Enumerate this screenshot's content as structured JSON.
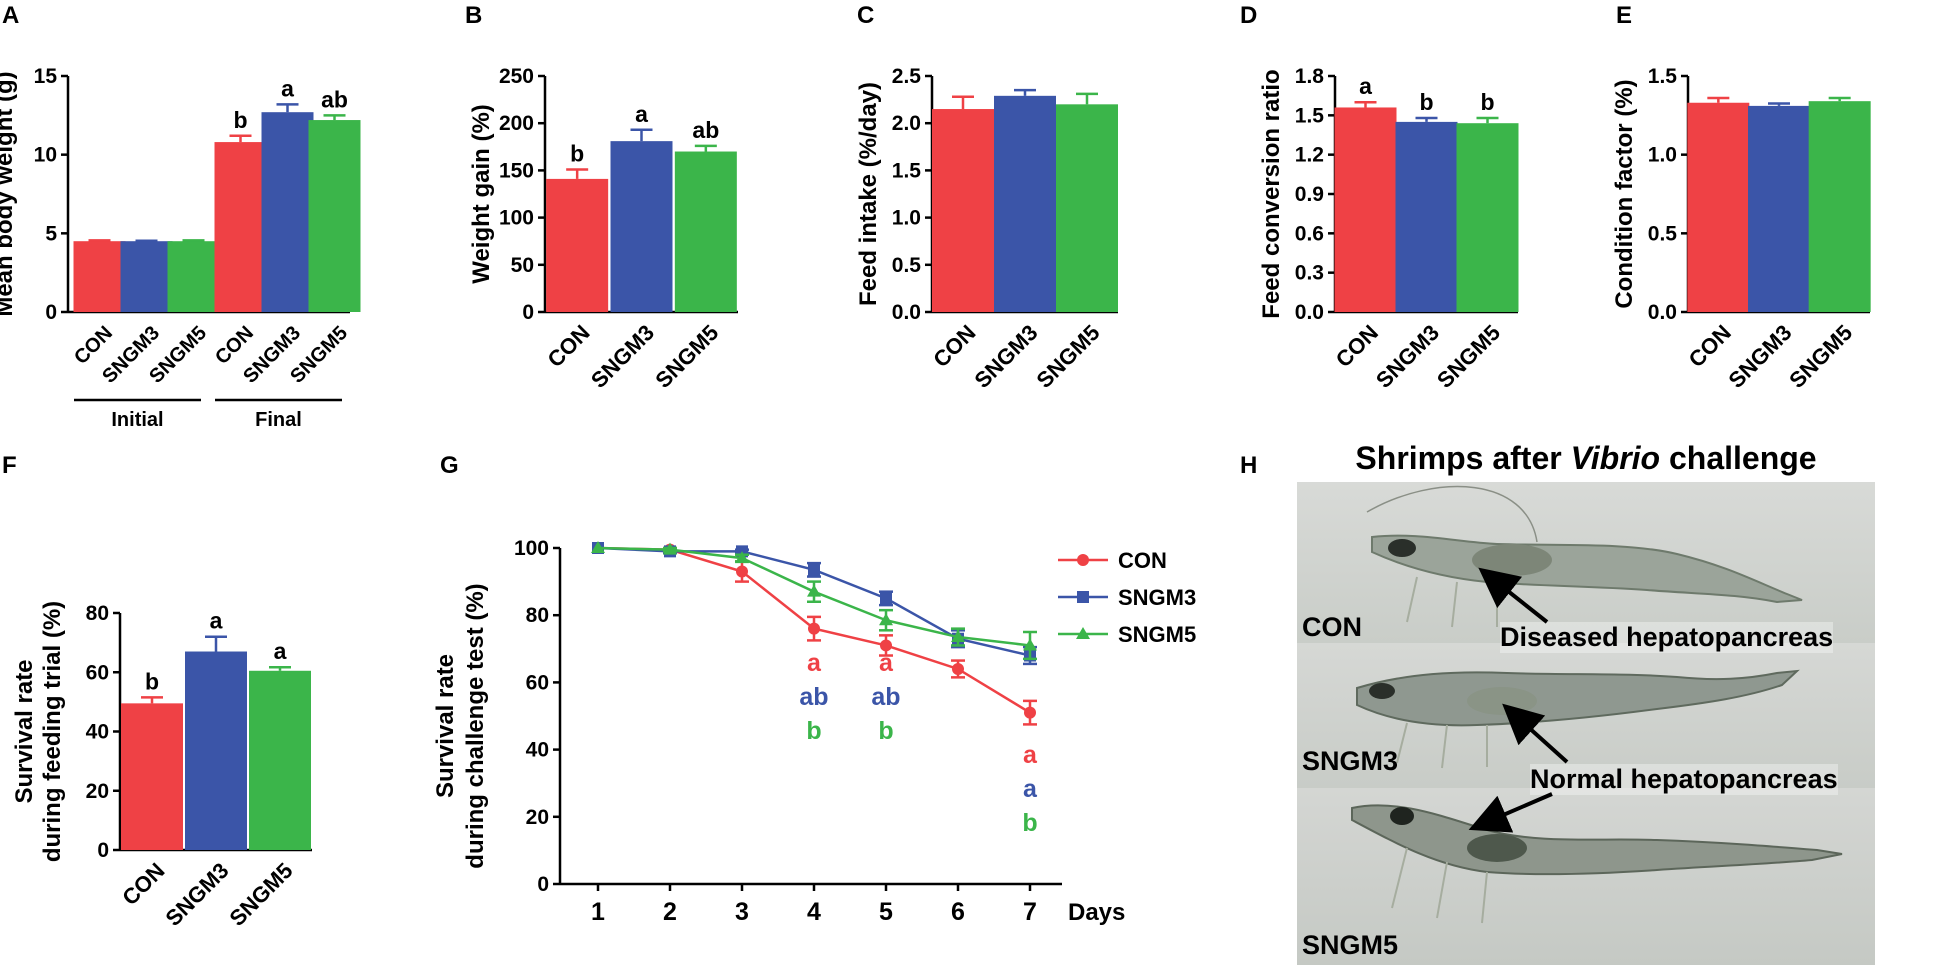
{
  "colors": {
    "con": "#ef4145",
    "sngm3": "#3b55a8",
    "sngm5": "#3bb54a",
    "axis": "#000000"
  },
  "chart_data": [
    {
      "panel": "A",
      "type": "bar",
      "ylabel": "Mean body weight (g)",
      "ylim": [
        0,
        15
      ],
      "yticks": [
        "0",
        "5",
        "10",
        "15"
      ],
      "categories": [
        "CON",
        "SNGM3",
        "SNGM5",
        "CON",
        "SNGM3",
        "SNGM5"
      ],
      "values": [
        4.5,
        4.5,
        4.5,
        10.8,
        12.7,
        12.2
      ],
      "errors": [
        0.05,
        0.03,
        0.05,
        0.4,
        0.5,
        0.3
      ],
      "letters": [
        "",
        "",
        "",
        "b",
        "a",
        "ab"
      ],
      "groups": [
        {
          "label": "Initial",
          "start": 0,
          "end": 2
        },
        {
          "label": "Final",
          "start": 3,
          "end": 5
        }
      ]
    },
    {
      "panel": "B",
      "type": "bar",
      "ylabel": "Weight gain (%)",
      "ylim": [
        0,
        250
      ],
      "yticks": [
        "0",
        "50",
        "100",
        "150",
        "200",
        "250"
      ],
      "categories": [
        "CON",
        "SNGM3",
        "SNGM5"
      ],
      "values": [
        141,
        181,
        170
      ],
      "errors": [
        10,
        12,
        6
      ],
      "letters": [
        "b",
        "a",
        "ab"
      ]
    },
    {
      "panel": "C",
      "type": "bar",
      "ylabel": "Feed intake (%/day)",
      "ylim": [
        0,
        2.5
      ],
      "yticks": [
        "0.0",
        "0.5",
        "1.0",
        "1.5",
        "2.0",
        "2.5"
      ],
      "categories": [
        "CON",
        "SNGM3",
        "SNGM5"
      ],
      "values": [
        2.15,
        2.29,
        2.2
      ],
      "errors": [
        0.13,
        0.06,
        0.11
      ],
      "letters": [
        "",
        "",
        ""
      ]
    },
    {
      "panel": "D",
      "type": "bar",
      "ylabel": "Feed conversion ratio",
      "ylim": [
        0,
        1.8
      ],
      "yticks": [
        "0.0",
        "0.3",
        "0.6",
        "0.9",
        "1.2",
        "1.5",
        "1.8"
      ],
      "categories": [
        "CON",
        "SNGM3",
        "SNGM5"
      ],
      "values": [
        1.56,
        1.45,
        1.44
      ],
      "errors": [
        0.04,
        0.03,
        0.04
      ],
      "letters": [
        "a",
        "b",
        "b"
      ]
    },
    {
      "panel": "E",
      "type": "bar",
      "ylabel": "Condition factor (%)",
      "ylim": [
        0,
        1.5
      ],
      "yticks": [
        "0.0",
        "0.5",
        "1.0",
        "1.5"
      ],
      "categories": [
        "CON",
        "SNGM3",
        "SNGM5"
      ],
      "values": [
        1.33,
        1.31,
        1.34
      ],
      "errors": [
        0.03,
        0.015,
        0.02
      ],
      "letters": [
        "",
        "",
        ""
      ]
    },
    {
      "panel": "F",
      "type": "bar",
      "ylabel": "Survival rate",
      "ylabel2": "during feeding trial (%)",
      "ylim": [
        0,
        80
      ],
      "yticks": [
        "0",
        "20",
        "40",
        "60",
        "80"
      ],
      "categories": [
        "CON",
        "SNGM3",
        "SNGM5"
      ],
      "values": [
        49.5,
        67,
        60.5
      ],
      "errors": [
        2,
        5,
        1.2
      ],
      "letters": [
        "b",
        "a",
        "a"
      ]
    },
    {
      "panel": "G",
      "type": "line",
      "ylabel": "Survival rate",
      "ylabel2": "during challenge test (%)",
      "xlabel": "Days",
      "ylim": [
        0,
        100
      ],
      "yticks": [
        "0",
        "20",
        "40",
        "60",
        "80",
        "100"
      ],
      "x": [
        1,
        2,
        3,
        4,
        5,
        6,
        7
      ],
      "xticks": [
        "1",
        "2",
        "3",
        "4",
        "5",
        "6",
        "7"
      ],
      "series": [
        {
          "name": "CON",
          "values": [
            100,
            99.5,
            93,
            76,
            71,
            64,
            51
          ],
          "errors": [
            0,
            0.5,
            3,
            3.5,
            3,
            2.5,
            3.5
          ],
          "marker": "circle"
        },
        {
          "name": "SNGM3",
          "values": [
            100,
            99,
            99,
            93.5,
            85,
            73,
            68
          ],
          "errors": [
            0,
            0.5,
            0.5,
            2,
            2,
            2.5,
            2.5
          ],
          "marker": "square"
        },
        {
          "name": "SNGM5",
          "values": [
            100,
            99.5,
            97,
            87,
            78.5,
            73.5,
            71
          ],
          "errors": [
            0,
            0.5,
            1,
            3,
            3,
            2.5,
            4
          ],
          "marker": "triangle"
        }
      ],
      "annotations": [
        {
          "x": 4,
          "labels": [
            "a",
            "ab",
            "b"
          ]
        },
        {
          "x": 5,
          "labels": [
            "a",
            "ab",
            "b"
          ]
        },
        {
          "x": 7,
          "labels": [
            "a",
            "a",
            "b"
          ]
        }
      ]
    }
  ],
  "panel_letters": [
    "A",
    "B",
    "C",
    "D",
    "E",
    "F",
    "G",
    "H"
  ],
  "photo": {
    "title_prefix": "Shrimps after ",
    "title_italic": "Vibrio",
    "title_suffix": " challenge",
    "labels": [
      "CON",
      "SNGM3",
      "SNGM5"
    ],
    "arrow_labels": [
      "Diseased hepatopancreas",
      "Normal hepatopancreas"
    ]
  }
}
